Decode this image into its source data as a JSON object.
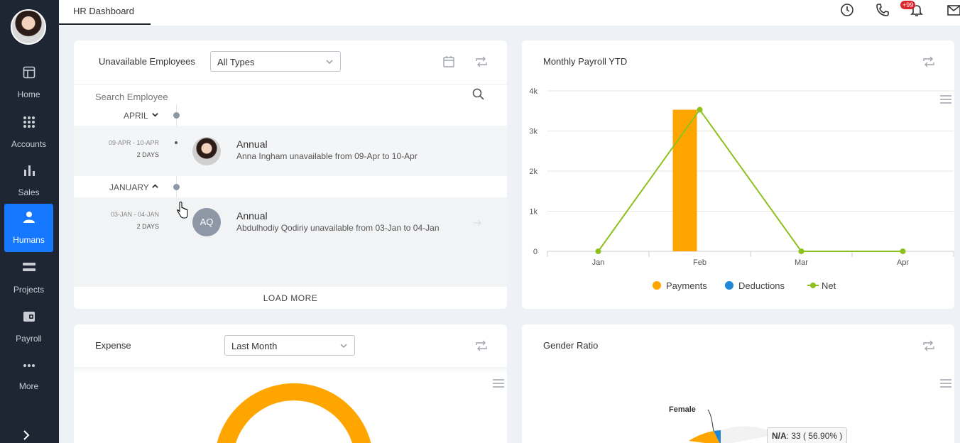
{
  "sidebar": {
    "items": [
      {
        "label": "Home",
        "icon": "home-icon"
      },
      {
        "label": "Accounts",
        "icon": "grid-icon"
      },
      {
        "label": "Sales",
        "icon": "bar-chart-icon"
      },
      {
        "label": "Humans",
        "icon": "person-icon",
        "active": true
      },
      {
        "label": "Projects",
        "icon": "projects-icon"
      },
      {
        "label": "Payroll",
        "icon": "wallet-icon"
      },
      {
        "label": "More",
        "icon": "more-dots-icon"
      }
    ]
  },
  "topbar": {
    "tab": "HR Dashboard",
    "notification_badge": "+99"
  },
  "unavailable": {
    "title": "Unavailable Employees",
    "filter_value": "All Types",
    "search_placeholder": "Search Employee",
    "groups": [
      {
        "month": "APRIL",
        "entries": [
          {
            "dates": "09-APR - 10-APR",
            "days": "2 DAYS",
            "type": "Annual",
            "desc": "Anna Ingham unavailable from 09-Apr to 10-Apr",
            "avatar": "photo"
          }
        ]
      },
      {
        "month": "JANUARY",
        "entries": [
          {
            "dates": "03-JAN - 04-JAN",
            "days": "2 DAYS",
            "type": "Annual",
            "desc": "Abdulhodiy Qodiriy unavailable from 03-Jan to 04-Jan",
            "avatar": "AQ"
          }
        ]
      }
    ],
    "load_more": "LOAD MORE"
  },
  "payroll": {
    "title": "Monthly Payroll YTD"
  },
  "chart_data": {
    "type": "bar",
    "categories": [
      "Jan",
      "Feb",
      "Mar",
      "Apr"
    ],
    "yticks": [
      "0",
      "1k",
      "2k",
      "3k",
      "4k"
    ],
    "ylim": [
      0,
      4000
    ],
    "series": [
      {
        "name": "Payments",
        "type": "bar",
        "color": "#ffa500",
        "values": [
          0,
          3530,
          0,
          0
        ]
      },
      {
        "name": "Deductions",
        "type": "bar",
        "color": "#1f88d6",
        "values": [
          0,
          0,
          0,
          0
        ]
      },
      {
        "name": "Net",
        "type": "line",
        "color": "#8cc11e",
        "values": [
          0,
          3530,
          0,
          0
        ]
      }
    ],
    "legend": "bottom",
    "grid": true
  },
  "expense": {
    "title": "Expense",
    "filter_value": "Last Month"
  },
  "gender": {
    "title": "Gender Ratio",
    "female_label": "Female",
    "tooltip_key": "N/A",
    "tooltip_value": ": 33 ( 56.90% )"
  }
}
